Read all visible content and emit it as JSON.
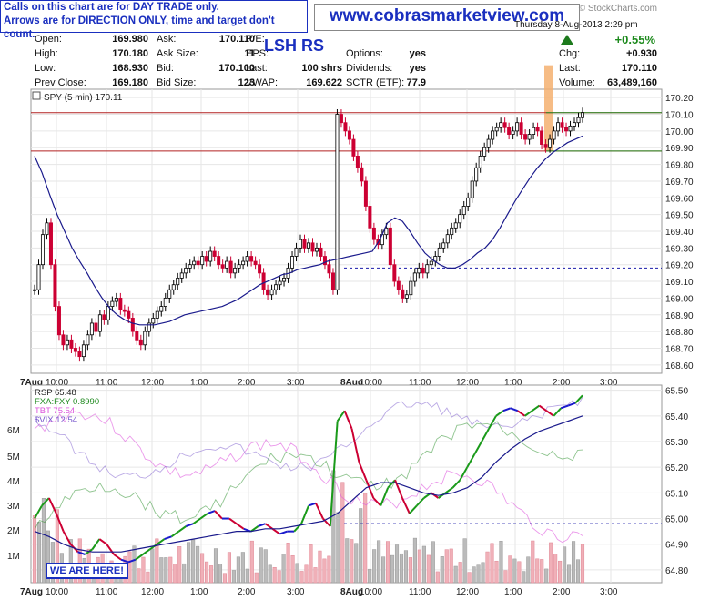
{
  "banner": {
    "line1": "Calls on this chart are for DAY TRADE only.",
    "line2": "Arrows are for DIRECTION ONLY, time and target don't count.",
    "site": "www.cobrasmarketview.com"
  },
  "header": {
    "logo": "© StockCharts.com",
    "date_time": "Thursday 8-Aug-2013 2:29 pm",
    "symbols_note": "LSH RS",
    "pct_change": "+0.55%",
    "rows": [
      {
        "l1": "Open:",
        "v1": "169.980",
        "l2": "Ask:",
        "v2": "170.110",
        "l3": "P/E:",
        "v3": ""
      },
      {
        "l1": "High:",
        "v1": "170.180",
        "l2": "Ask Size:",
        "v2": "11",
        "l3": "EPS:",
        "v3": ""
      },
      {
        "l1": "Low:",
        "v1": "168.930",
        "l2": "Bid:",
        "v2": "170.100",
        "l3": "Last:",
        "v3": "100 shrs"
      },
      {
        "l1": "Prev Close:",
        "v1": "169.180",
        "l2": "Bid Size:",
        "v2": "123",
        "l3": "VWAP:",
        "v3": "169.622"
      }
    ],
    "mid_rows": [
      {
        "l": "Options:",
        "v": "yes"
      },
      {
        "l": "Dividends:",
        "v": "yes"
      },
      {
        "l": "SCTR (ETF):",
        "v": "77.9"
      }
    ],
    "right_rows": [
      {
        "l": "Chg:",
        "v": "+0.930"
      },
      {
        "l": "Last:",
        "v": "170.110"
      },
      {
        "l": "Volume:",
        "v": "63,489,160"
      }
    ]
  },
  "colors": {
    "up_candle": "#000000",
    "down_candle": "#cc0033",
    "ma_line": "#1a1a8c",
    "hline": "#b22222",
    "hline_green": "#228b22",
    "orange_bar": "#f5b070",
    "dashed": "#1a1aaa",
    "rsp_up": "#1a9a1a",
    "rsp_down": "#cc0033",
    "rsp_flat": "#1a1acc",
    "fxa": "#228b22",
    "tbt": "#dd55dd",
    "vix": "#7755cc",
    "vol_up": "#bbbbbb",
    "vol_down": "#f0b0b8"
  },
  "chart_data": [
    {
      "type": "candlestick",
      "title": "SPY (5 min) 170.11",
      "x_ticks": [
        "7Aug",
        "10:00",
        "11:00",
        "12:00",
        "1:00",
        "2:00",
        "3:00",
        "8Aug",
        "10:00",
        "11:00",
        "12:00",
        "1:00",
        "2:00",
        "3:00"
      ],
      "ylim": [
        168.55,
        170.25
      ],
      "y_ticks": [
        "170.20",
        "170.10",
        "170.00",
        "169.90",
        "169.80",
        "169.70",
        "169.60",
        "169.50",
        "169.40",
        "169.30",
        "169.20",
        "169.10",
        "169.00",
        "168.90",
        "168.80",
        "168.70",
        "168.60"
      ],
      "hlines": [
        170.11,
        169.88
      ],
      "resistance": 170.11,
      "support": 169.88,
      "dashed_level": 169.18,
      "closes": [
        169.05,
        169.2,
        169.38,
        169.45,
        169.2,
        168.95,
        168.78,
        168.72,
        168.75,
        168.7,
        168.68,
        168.65,
        168.72,
        168.78,
        168.85,
        168.8,
        168.9,
        168.87,
        168.95,
        168.98,
        169.0,
        168.93,
        168.92,
        168.88,
        168.8,
        168.75,
        168.72,
        168.8,
        168.85,
        168.88,
        168.92,
        168.95,
        169.0,
        169.05,
        169.08,
        169.12,
        169.15,
        169.18,
        169.2,
        169.22,
        169.2,
        169.25,
        169.22,
        169.28,
        169.25,
        169.2,
        169.18,
        169.22,
        169.15,
        169.18,
        169.2,
        169.22,
        169.25,
        169.22,
        169.2,
        169.15,
        169.05,
        169.02,
        169.05,
        169.08,
        169.1,
        169.12,
        169.18,
        169.25,
        169.3,
        169.35,
        169.3,
        169.33,
        169.28,
        169.3,
        169.25,
        169.2,
        169.15,
        169.05,
        170.1,
        170.05,
        170.0,
        169.95,
        169.85,
        169.78,
        169.7,
        169.55,
        169.42,
        169.35,
        169.32,
        169.38,
        169.42,
        169.2,
        169.1,
        169.05,
        169.0,
        169.02,
        169.1,
        169.15,
        169.18,
        169.15,
        169.2,
        169.22,
        169.25,
        169.3,
        169.33,
        169.38,
        169.42,
        169.45,
        169.5,
        169.55,
        169.6,
        169.7,
        169.78,
        169.85,
        169.9,
        169.95,
        170.0,
        170.02,
        170.05,
        170.02,
        169.98,
        170.0,
        170.05,
        169.98,
        169.95,
        169.98,
        170.02,
        170.0,
        169.92,
        169.9,
        169.95,
        170.0,
        170.05,
        170.02,
        170.0,
        170.03,
        170.05,
        170.08,
        170.11
      ],
      "ma": [
        169.85,
        169.75,
        169.62,
        169.5,
        169.4,
        169.3,
        169.22,
        169.15,
        169.07,
        169.0,
        168.94,
        168.9,
        168.87,
        168.85,
        168.84,
        168.84,
        168.84,
        168.85,
        168.86,
        168.88,
        168.9,
        168.91,
        168.92,
        168.93,
        168.94,
        168.95,
        168.97,
        168.99,
        169.02,
        169.05,
        169.08,
        169.1,
        169.12,
        169.14,
        169.15,
        169.17,
        169.18,
        169.19,
        169.2,
        169.22,
        169.23,
        169.24,
        169.25,
        169.26,
        169.27,
        169.28,
        169.35,
        169.45,
        169.48,
        169.46,
        169.4,
        169.33,
        169.27,
        169.23,
        169.2,
        169.18,
        169.18,
        169.2,
        169.23,
        169.27,
        169.3,
        169.35,
        169.42,
        169.5,
        169.58,
        169.65,
        169.72,
        169.78,
        169.83,
        169.87,
        169.9,
        169.93,
        169.95,
        169.97
      ],
      "orange_bar_range": [
        169.88,
        170.35
      ]
    },
    {
      "type": "line",
      "title": "RSP 65.48",
      "legend": [
        "RSP 65.48",
        "FXA:FXY 0.8990",
        "TBT 75.54",
        "$VIX 12.54"
      ],
      "ylim": [
        64.75,
        65.52
      ],
      "y_ticks": [
        "65.50",
        "65.40",
        "65.30",
        "65.20",
        "65.10",
        "65.00",
        "64.90",
        "64.80"
      ],
      "vol_ticks": [
        "6M",
        "5M",
        "4M",
        "3M",
        "2M",
        "1M"
      ],
      "dashed_level": 64.98,
      "rsp": [
        65.0,
        65.05,
        65.08,
        65.02,
        64.95,
        64.9,
        64.87,
        64.86,
        64.88,
        64.92,
        64.9,
        64.86,
        64.84,
        64.83,
        64.84,
        64.86,
        64.88,
        64.9,
        64.92,
        64.93,
        64.95,
        64.97,
        64.98,
        65.0,
        65.02,
        65.03,
        65.0,
        65.0,
        64.98,
        64.96,
        64.95,
        64.97,
        64.98,
        64.96,
        64.94,
        64.95,
        64.95,
        64.98,
        65.05,
        65.06,
        65.0,
        64.97,
        65.38,
        65.42,
        65.35,
        65.22,
        65.15,
        65.08,
        65.05,
        65.12,
        65.15,
        65.08,
        65.02,
        65.05,
        65.08,
        65.1,
        65.08,
        65.1,
        65.12,
        65.15,
        65.2,
        65.25,
        65.3,
        65.35,
        65.4,
        65.42,
        65.43,
        65.42,
        65.4,
        65.42,
        65.44,
        65.42,
        65.4,
        65.43,
        65.44,
        65.45,
        65.48
      ],
      "rsp_ma": [
        64.95,
        64.93,
        64.9,
        64.88,
        64.87,
        64.87,
        64.87,
        64.88,
        64.89,
        64.9,
        64.91,
        64.92,
        64.93,
        64.94,
        64.95,
        64.95,
        64.96,
        64.96,
        64.97,
        64.98,
        64.99,
        65.02,
        65.07,
        65.12,
        65.14,
        65.14,
        65.12,
        65.1,
        65.09,
        65.1,
        65.12,
        65.16,
        65.22,
        65.27,
        65.31,
        65.34,
        65.36,
        65.38,
        65.4
      ]
    }
  ]
}
